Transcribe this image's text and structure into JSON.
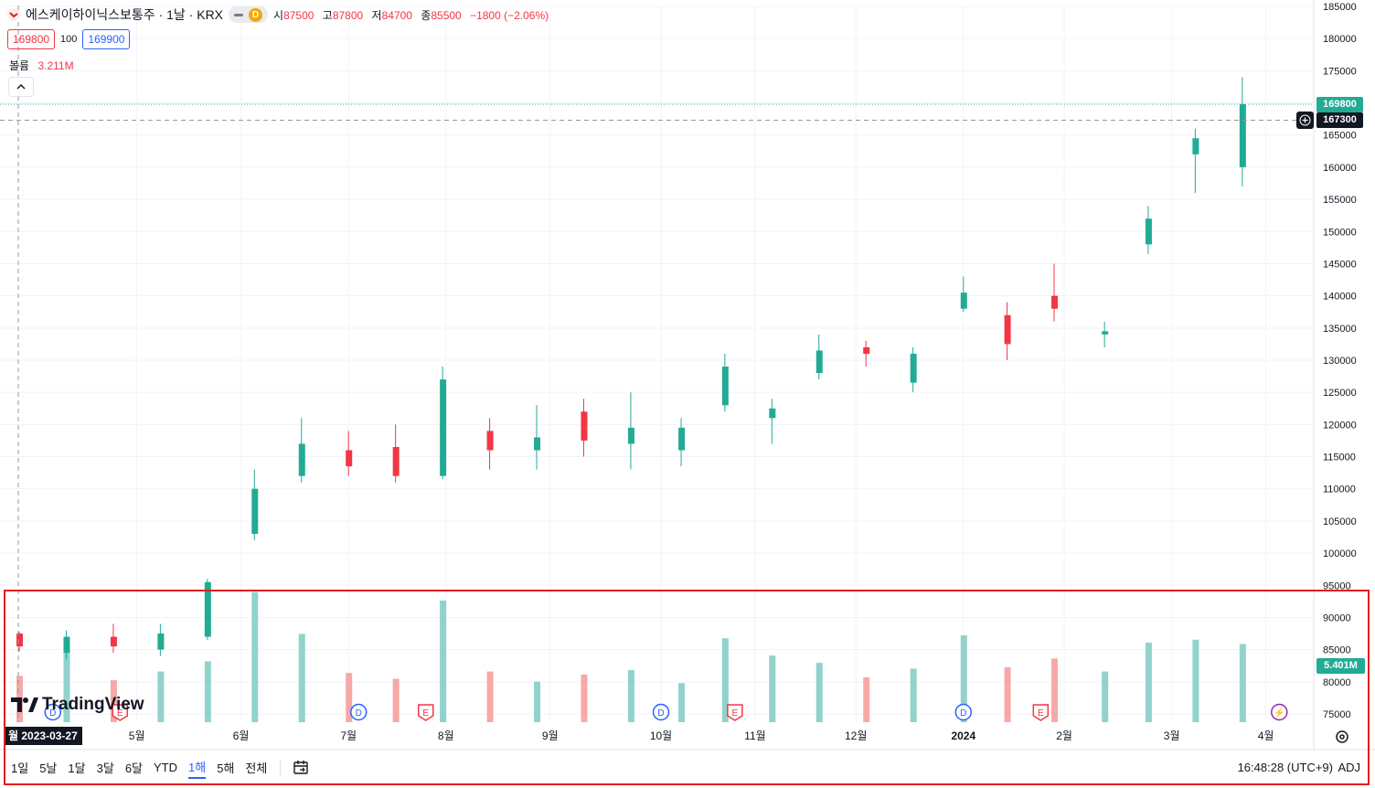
{
  "header": {
    "symbol_title": "에스케이하이닉스보통주 · 1날 · KRX",
    "badge": "D",
    "ohlc": [
      {
        "label": "시",
        "value": "87500"
      },
      {
        "label": "고",
        "value": "87800"
      },
      {
        "label": "저",
        "value": "84700"
      },
      {
        "label": "종",
        "value": "85500"
      }
    ],
    "change": "−1800 (−2.06%)",
    "bid": "169800",
    "spread": "100",
    "ask": "169900",
    "volume_label": "볼륨",
    "volume_value": "3.211M"
  },
  "price_tags": {
    "last": "169800",
    "crosshair": "167300",
    "volume": "5.401M"
  },
  "axis": {
    "y_ticks": [
      "185000",
      "180000",
      "175000",
      "170000",
      "165000",
      "160000",
      "155000",
      "150000",
      "145000",
      "140000",
      "135000",
      "130000",
      "125000",
      "120000",
      "115000",
      "110000",
      "105000",
      "100000",
      "95000",
      "90000",
      "85000",
      "80000",
      "75000"
    ],
    "x_ticks": [
      "5월",
      "6월",
      "7월",
      "8월",
      "9월",
      "10월",
      "11월",
      "12월",
      "2024",
      "2월",
      "3월",
      "4월"
    ],
    "crosshair_date": "월 2023-03-27"
  },
  "events": [
    {
      "type": "D",
      "label": "D"
    },
    {
      "type": "E",
      "label": "E"
    },
    {
      "type": "D",
      "label": "D"
    },
    {
      "type": "E",
      "label": "E"
    },
    {
      "type": "D",
      "label": "D"
    },
    {
      "type": "E",
      "label": "E"
    },
    {
      "type": "D",
      "label": "D"
    },
    {
      "type": "E",
      "label": "E"
    },
    {
      "type": "split",
      "label": "⚡"
    }
  ],
  "toolbar": {
    "ranges": [
      "1일",
      "5날",
      "1달",
      "3달",
      "6달",
      "YTD",
      "1해",
      "5해",
      "전체"
    ],
    "active_range": "1해",
    "clock": "16:48:28 (UTC+9)",
    "adj": "ADJ",
    "logo": "TradingView"
  },
  "colors": {
    "up": "#22ab94",
    "down": "#f23645",
    "up_vol": "#92d2cc",
    "down_vol": "#f7a9a7",
    "accent": "#2962ff"
  },
  "chart_data": {
    "type": "candlestick",
    "title": "에스케이하이닉스보통주 · 1날 · KRX",
    "y_range": [
      72000,
      186000
    ],
    "x_range": [
      "2023-03-24",
      "2024-04-12"
    ],
    "series": [
      {
        "name": "가격",
        "type": "ohlc",
        "points": [
          [
            "2023-03-27",
            87500,
            87800,
            84700,
            85500
          ],
          [
            "2023-04-10",
            84500,
            88000,
            83500,
            87000
          ],
          [
            "2023-04-24",
            87000,
            89000,
            84500,
            85500
          ],
          [
            "2023-05-08",
            85000,
            89000,
            84000,
            87500
          ],
          [
            "2023-05-22",
            87000,
            96000,
            86500,
            95500
          ],
          [
            "2023-06-05",
            103000,
            113000,
            102000,
            110000
          ],
          [
            "2023-06-19",
            112000,
            121000,
            111000,
            117000
          ],
          [
            "2023-07-03",
            116000,
            119000,
            112000,
            113500
          ],
          [
            "2023-07-17",
            116500,
            120000,
            111000,
            112000
          ],
          [
            "2023-07-31",
            112000,
            129000,
            111500,
            127000
          ],
          [
            "2023-08-14",
            119000,
            121000,
            113000,
            116000
          ],
          [
            "2023-08-28",
            116000,
            123000,
            113000,
            118000
          ],
          [
            "2023-09-11",
            122000,
            124000,
            115000,
            117500
          ],
          [
            "2023-09-25",
            117000,
            125000,
            113000,
            119500
          ],
          [
            "2023-10-10",
            116000,
            121000,
            113500,
            119500
          ],
          [
            "2023-10-23",
            123000,
            131000,
            122000,
            129000
          ],
          [
            "2023-11-06",
            121000,
            124000,
            117000,
            122500
          ],
          [
            "2023-11-20",
            128000,
            134000,
            127000,
            131500
          ],
          [
            "2023-12-04",
            132000,
            133000,
            129000,
            131000
          ],
          [
            "2023-12-18",
            126500,
            132000,
            125000,
            131000
          ],
          [
            "2024-01-02",
            138000,
            143000,
            137500,
            140500
          ],
          [
            "2024-01-15",
            137000,
            139000,
            130000,
            132500
          ],
          [
            "2024-01-29",
            140000,
            145000,
            136000,
            138000
          ],
          [
            "2024-02-13",
            134000,
            136000,
            132000,
            134500
          ],
          [
            "2024-02-26",
            148000,
            154000,
            146500,
            152000
          ],
          [
            "2024-03-11",
            162000,
            166000,
            156000,
            164500
          ],
          [
            "2024-03-25",
            160000,
            174000,
            157000,
            169800
          ]
        ]
      },
      {
        "name": "볼륨",
        "type": "volume",
        "points": [
          [
            "2023-03-27",
            3.2
          ],
          [
            "2023-04-10",
            5.1
          ],
          [
            "2023-04-24",
            2.9
          ],
          [
            "2023-05-08",
            3.5
          ],
          [
            "2023-05-22",
            4.2
          ],
          [
            "2023-06-05",
            9.0
          ],
          [
            "2023-06-19",
            6.1
          ],
          [
            "2023-07-03",
            3.4
          ],
          [
            "2023-07-17",
            3.0
          ],
          [
            "2023-07-31",
            8.4
          ],
          [
            "2023-08-14",
            3.5
          ],
          [
            "2023-08-28",
            2.8
          ],
          [
            "2023-09-11",
            3.3
          ],
          [
            "2023-09-25",
            3.6
          ],
          [
            "2023-10-10",
            2.7
          ],
          [
            "2023-10-23",
            5.8
          ],
          [
            "2023-11-06",
            4.6
          ],
          [
            "2023-11-20",
            4.1
          ],
          [
            "2023-12-04",
            3.1
          ],
          [
            "2023-12-18",
            3.7
          ],
          [
            "2024-01-02",
            6.0
          ],
          [
            "2024-01-15",
            3.8
          ],
          [
            "2024-01-29",
            4.4
          ],
          [
            "2024-02-13",
            3.5
          ],
          [
            "2024-02-26",
            5.5
          ],
          [
            "2024-03-11",
            5.7
          ],
          [
            "2024-03-25",
            5.401
          ]
        ]
      }
    ],
    "volume_unit": "M",
    "grid": true,
    "legend_position": "top-left"
  }
}
